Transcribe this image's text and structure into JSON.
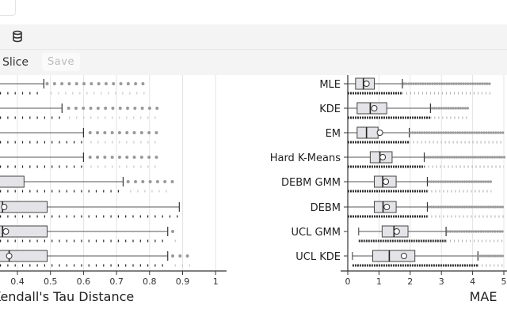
{
  "toolbar": {
    "icon": "database-icon"
  },
  "actions": {
    "slice_label": "Slice",
    "save_label": "Save"
  },
  "chart_data": [
    {
      "type": "boxplot",
      "xlabel": "Kendall's Tau Distance",
      "xticks": [
        "0.4",
        "0.5",
        "0.6",
        "0.7",
        "0.8",
        "0.9",
        "1"
      ],
      "xlim": [
        0,
        1.03
      ],
      "grid": true,
      "series": [
        {
          "q3": null,
          "whisker_high": 0.48,
          "outliers": [
            0.49,
            0.8
          ]
        },
        {
          "q3": null,
          "whisker_high": 0.535,
          "outliers": [
            0.555,
            0.825
          ]
        },
        {
          "q3": null,
          "whisker_high": 0.6,
          "outliers": [
            0.62,
            0.825
          ]
        },
        {
          "q3": null,
          "whisker_high": 0.6,
          "outliers": [
            0.62,
            0.825
          ]
        },
        {
          "q3": 0.42,
          "whisker_high": 0.72,
          "outliers": [
            0.735,
            0.87
          ]
        },
        {
          "median": 0.355,
          "mean": 0.36,
          "q3": 0.49,
          "whisker_high": 0.89,
          "outliers": []
        },
        {
          "median": 0.355,
          "mean": 0.365,
          "q3": 0.49,
          "whisker_high": 0.855,
          "outliers": [
            0.87,
            0.89
          ]
        },
        {
          "median": 0.375,
          "mean": 0.375,
          "q3": 0.49,
          "whisker_high": 0.855,
          "outliers": [
            0.87,
            0.935
          ]
        }
      ]
    },
    {
      "type": "boxplot",
      "xlabel": "MAE",
      "xticks": [
        "0",
        "1",
        "2",
        "3",
        "4",
        "5"
      ],
      "xlim": [
        0,
        5
      ],
      "grid": true,
      "categories": [
        "MLE",
        "KDE",
        "EM",
        "Hard K-Means",
        "DEBM GMM",
        "DEBM",
        "UCL GMM",
        "UCL KDE"
      ],
      "series": [
        {
          "whisker_low": 0,
          "q1": 0.25,
          "median": 0.5,
          "mean": 0.6,
          "q3": 0.85,
          "whisker_high": 1.75,
          "outliers": [
            1.8,
            4.6
          ]
        },
        {
          "whisker_low": 0,
          "q1": 0.3,
          "median": 0.72,
          "mean": 0.85,
          "q3": 1.25,
          "whisker_high": 2.65,
          "outliers": [
            2.7,
            3.85
          ]
        },
        {
          "whisker_low": 0,
          "q1": 0.3,
          "median": 0.6,
          "mean": 1.03,
          "q3": 0.97,
          "whisker_high": 1.97,
          "outliers": [
            2.0,
            5.0
          ]
        },
        {
          "whisker_low": 0,
          "q1": 0.72,
          "median": 1.03,
          "mean": 1.12,
          "q3": 1.42,
          "whisker_high": 2.45,
          "outliers": [
            2.5,
            5.0
          ]
        },
        {
          "whisker_low": 0,
          "q1": 0.85,
          "median": 1.12,
          "mean": 1.22,
          "q3": 1.55,
          "whisker_high": 2.55,
          "outliers": [
            2.6,
            4.6
          ]
        },
        {
          "whisker_low": 0,
          "q1": 0.85,
          "median": 1.13,
          "mean": 1.25,
          "q3": 1.55,
          "whisker_high": 2.55,
          "outliers": [
            2.6,
            5.0
          ]
        },
        {
          "whisker_low": 0.35,
          "q1": 1.1,
          "median": 1.48,
          "mean": 1.57,
          "q3": 1.93,
          "whisker_high": 3.15,
          "outliers": [
            3.2,
            5.0
          ]
        },
        {
          "whisker_low": 0.15,
          "q1": 0.8,
          "median": 1.33,
          "mean": 1.8,
          "q3": 2.15,
          "whisker_high": 4.17,
          "outliers": [
            4.2,
            5.0
          ]
        }
      ]
    }
  ]
}
